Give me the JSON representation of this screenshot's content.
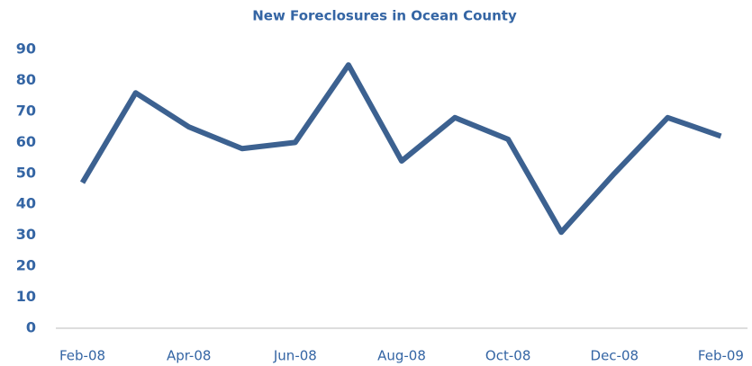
{
  "chart_data": {
    "type": "line",
    "title": "New Foreclosures in Ocean County",
    "categories": [
      "Feb-08",
      null,
      "Apr-08",
      null,
      "Jun-08",
      null,
      "Aug-08",
      null,
      "Oct-08",
      null,
      "Dec-08",
      null,
      "Feb-09"
    ],
    "values": [
      47,
      76,
      65,
      58,
      60,
      85,
      54,
      68,
      61,
      31,
      50,
      68,
      62
    ],
    "color": "#3c6190",
    "ylim": [
      0,
      90
    ],
    "yticks": [
      0,
      10,
      20,
      30,
      40,
      50,
      60,
      70,
      80,
      90
    ],
    "grid": false
  }
}
